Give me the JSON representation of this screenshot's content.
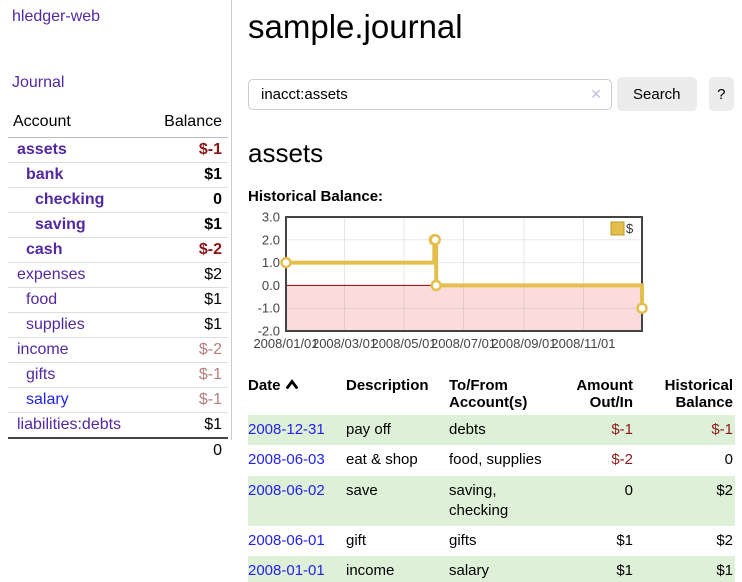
{
  "app": {
    "brand": "hledger-web",
    "nav": {
      "journal": "Journal"
    }
  },
  "sidebar": {
    "columns": {
      "account": "Account",
      "balance": "Balance"
    },
    "rows": [
      {
        "account": "assets",
        "balance": "$-1",
        "indent": 0,
        "bold": true,
        "balance_style": "neg-strong",
        "link": "purple"
      },
      {
        "account": "bank",
        "balance": "$1",
        "indent": 1,
        "bold": true,
        "balance_style": "pos",
        "link": "purple"
      },
      {
        "account": "checking",
        "balance": "0",
        "indent": 2,
        "bold": true,
        "balance_style": "pos",
        "link": "purple"
      },
      {
        "account": "saving",
        "balance": "$1",
        "indent": 2,
        "bold": true,
        "balance_style": "pos",
        "link": "purple"
      },
      {
        "account": "cash",
        "balance": "$-2",
        "indent": 1,
        "bold": true,
        "balance_style": "neg-strong",
        "link": "purple"
      },
      {
        "account": "expenses",
        "balance": "$2",
        "indent": 0,
        "bold": false,
        "balance_style": "pos",
        "link": "purple"
      },
      {
        "account": "food",
        "balance": "$1",
        "indent": 1,
        "bold": false,
        "balance_style": "pos",
        "link": "purple"
      },
      {
        "account": "supplies",
        "balance": "$1",
        "indent": 1,
        "bold": false,
        "balance_style": "pos",
        "link": "purple"
      },
      {
        "account": "income",
        "balance": "$-2",
        "indent": 0,
        "bold": false,
        "balance_style": "neg-soft",
        "link": "purple"
      },
      {
        "account": "gifts",
        "balance": "$-1",
        "indent": 1,
        "bold": false,
        "balance_style": "neg-soft",
        "link": "purple"
      },
      {
        "account": "salary",
        "balance": "$-1",
        "indent": 1,
        "bold": false,
        "balance_style": "neg-soft",
        "link": "blue"
      },
      {
        "account": "liabilities:debts",
        "balance": "$1",
        "indent": 0,
        "bold": false,
        "balance_style": "pos",
        "link": "purple"
      }
    ],
    "total": "0"
  },
  "header": {
    "title": "sample.journal"
  },
  "search": {
    "value": "inacct:assets",
    "clear_icon": "✕",
    "button_label": "Search",
    "help_label": "?"
  },
  "register": {
    "heading": "assets",
    "chart_title": "Historical Balance:",
    "table": {
      "headers": {
        "date": "Date",
        "description": "Description",
        "accounts": "To/From Account(s)",
        "amount": "Amount Out/In",
        "balance": "Historical Balance"
      },
      "sort_icon": "chevron-up",
      "rows": [
        {
          "date": "2008-12-31",
          "description": "pay off",
          "accounts": "debts",
          "amount": "$-1",
          "balance": "$-1",
          "amount_neg": true,
          "balance_neg": true
        },
        {
          "date": "2008-06-03",
          "description": "eat & shop",
          "accounts": "food, supplies",
          "amount": "$-2",
          "balance": "0",
          "amount_neg": true,
          "balance_neg": false
        },
        {
          "date": "2008-06-02",
          "description": "save",
          "accounts": "saving, checking",
          "amount": "0",
          "balance": "$2",
          "amount_neg": false,
          "balance_neg": false
        },
        {
          "date": "2008-06-01",
          "description": "gift",
          "accounts": "gifts",
          "amount": "$1",
          "balance": "$2",
          "amount_neg": false,
          "balance_neg": false
        },
        {
          "date": "2008-01-01",
          "description": "income",
          "accounts": "salary",
          "amount": "$1",
          "balance": "$1",
          "amount_neg": false,
          "balance_neg": false
        }
      ]
    }
  },
  "chart_data": {
    "type": "line",
    "step": true,
    "title": "Historical Balance",
    "series": [
      {
        "name": "$",
        "color": "#e5bf4d",
        "marker_fill": "#ffffff",
        "points": [
          [
            "2008-01-01",
            1
          ],
          [
            "2008-06-01",
            2
          ],
          [
            "2008-06-02",
            2
          ],
          [
            "2008-06-03",
            0
          ],
          [
            "2008-12-31",
            -1
          ]
        ]
      }
    ],
    "xrange": [
      "2008-01-01",
      "2008-12-31"
    ],
    "ylim": [
      -2,
      3
    ],
    "yticks": [
      3.0,
      2.0,
      1.0,
      0.0,
      -1.0,
      -2.0
    ],
    "xticks": [
      "2008/01/01",
      "2008/03/01",
      "2008/05/01",
      "2008/07/01",
      "2008/09/01",
      "2008/11/01"
    ],
    "grid": true,
    "legend_position": "top-right",
    "colors": {
      "negative_region": "#fbdcdc",
      "zero_line": "#8b0000",
      "plot_border": "#444444",
      "grid_line": "rgba(0,0,0,0.09)",
      "tick_text": "#444444",
      "legend_border": "#bf9b30"
    }
  }
}
